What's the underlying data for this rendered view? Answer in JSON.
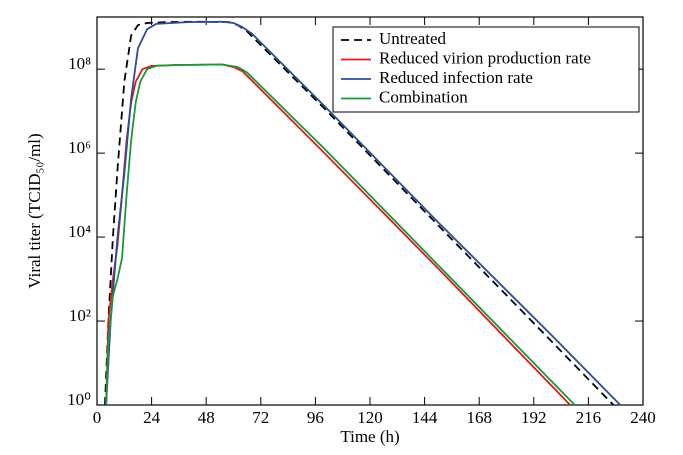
{
  "chart_data": {
    "type": "line",
    "xlabel": "Time (h)",
    "ylabel": "Viral titer (TCID₅₀/ml)",
    "xlim": [
      0,
      240
    ],
    "xticks": [
      0,
      24,
      48,
      72,
      96,
      120,
      144,
      168,
      192,
      216,
      240
    ],
    "ylim": [
      1,
      1750000000
    ],
    "yscale": "log",
    "yticks": [
      {
        "value": 1,
        "label": "10⁰"
      },
      {
        "value": 100,
        "label": "10²"
      },
      {
        "value": 10000,
        "label": "10⁴"
      },
      {
        "value": 1000000,
        "label": "10⁶"
      },
      {
        "value": 100000000,
        "label": "10⁸"
      }
    ],
    "legend": "upper right",
    "series": [
      {
        "name": "Untreated",
        "color": "#000000",
        "linestyle": "dashed",
        "x": [
          3.5,
          5,
          7,
          9,
          12,
          15,
          18,
          22,
          30,
          45,
          58,
          62,
          66,
          100,
          150,
          200,
          227
        ],
        "values": [
          1,
          100,
          10000,
          398000,
          50000000,
          630000000,
          1120000000,
          1260000000,
          1320000000,
          1350000000,
          1320000000,
          1120000000,
          790000000,
          11500000,
          19000,
          32,
          1
        ]
      },
      {
        "name": "Reduced virion production rate",
        "color": "#e8161b",
        "linestyle": "solid",
        "x": [
          4,
          5,
          7,
          9,
          11,
          13,
          15,
          17,
          20,
          24,
          35,
          55,
          60,
          64,
          100,
          150,
          208
        ],
        "values": [
          1,
          100,
          1000,
          6300,
          100000,
          2000000,
          16000000,
          50000000,
          100000000,
          120000000,
          126000000,
          129000000,
          112000000,
          89000000,
          1000000,
          1780,
          1
        ]
      },
      {
        "name": "Reduced infection rate",
        "color": "#2b4b9b",
        "linestyle": "solid",
        "x": [
          4,
          6,
          9,
          12,
          15,
          18,
          22,
          26,
          40,
          55,
          60,
          64,
          68,
          100,
          150,
          200,
          230
        ],
        "values": [
          1,
          100,
          10000,
          316000,
          20000000,
          316000000,
          890000000,
          1200000000,
          1320000000,
          1350000000,
          1260000000,
          1000000000,
          710000000,
          13200000,
          22400,
          45,
          1
        ]
      },
      {
        "name": "Combination",
        "color": "#159a3a",
        "linestyle": "solid",
        "x": [
          4,
          5,
          7,
          9,
          11,
          13,
          15,
          17,
          19,
          22,
          26,
          35,
          55,
          62,
          66,
          100,
          150,
          210
        ],
        "values": [
          1,
          32,
          400,
          1000,
          3160,
          100000,
          2000000,
          16000000,
          50000000,
          100000000,
          120000000,
          126000000,
          129000000,
          112000000,
          83000000,
          1260000,
          2140,
          1
        ]
      }
    ]
  }
}
